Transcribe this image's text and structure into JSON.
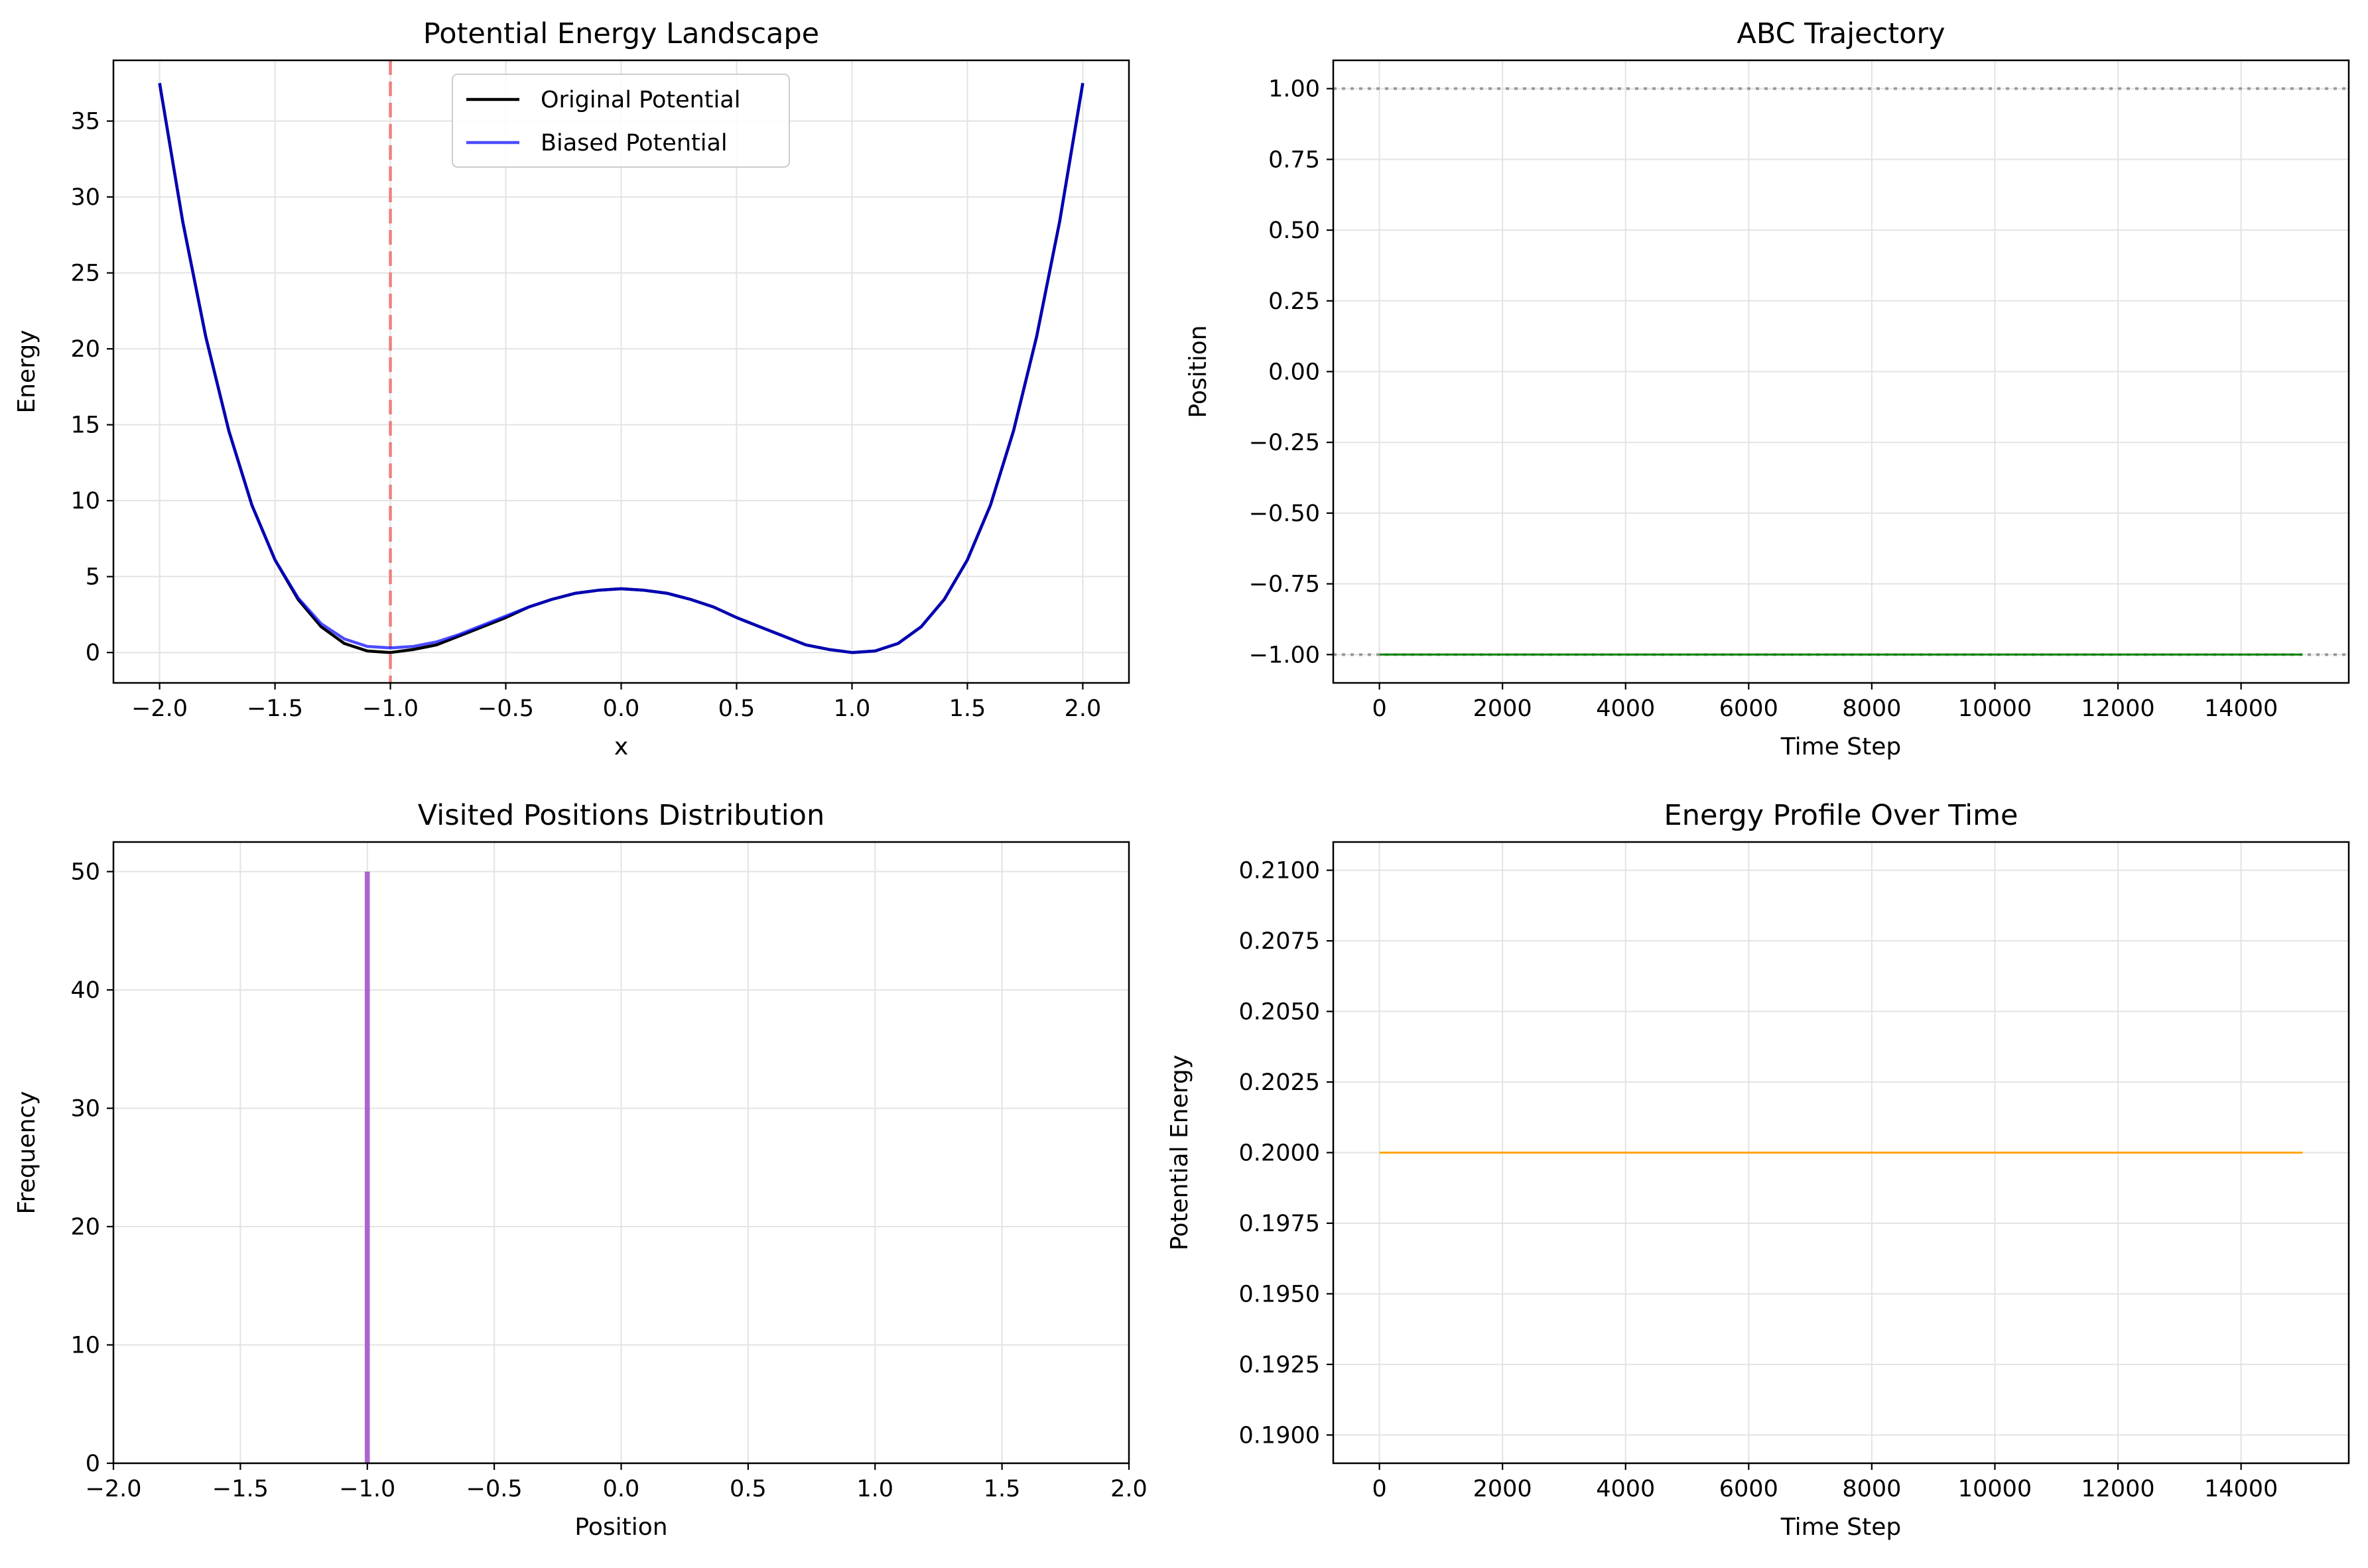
{
  "chart_data": [
    {
      "type": "line",
      "title": "Potential Energy Landscape",
      "xlabel": "x",
      "ylabel": "Energy",
      "xlim": [
        -2.2,
        2.2
      ],
      "ylim": [
        -2,
        39
      ],
      "xticks": [
        -2.0,
        -1.5,
        -1.0,
        -0.5,
        0.0,
        0.5,
        1.0,
        1.5,
        2.0
      ],
      "yticks": [
        0,
        5,
        10,
        15,
        20,
        25,
        30,
        35
      ],
      "xtick_labels": [
        "−2.0",
        "−1.5",
        "−1.0",
        "−0.5",
        "0.0",
        "0.5",
        "1.0",
        "1.5",
        "2.0"
      ],
      "ytick_labels": [
        "0",
        "5",
        "10",
        "15",
        "20",
        "25",
        "30",
        "35"
      ],
      "grid": true,
      "legend_position": "top-center",
      "series": [
        {
          "name": "Original Potential",
          "color": "#000000",
          "x": [
            -2.0,
            -1.9,
            -1.8,
            -1.7,
            -1.6,
            -1.5,
            -1.4,
            -1.3,
            -1.2,
            -1.1,
            -1.0,
            -0.9,
            -0.8,
            -0.7,
            -0.6,
            -0.5,
            -0.4,
            -0.3,
            -0.2,
            -0.1,
            0.0,
            0.1,
            0.2,
            0.3,
            0.4,
            0.5,
            0.6,
            0.7,
            0.8,
            0.9,
            1.0,
            1.1,
            1.2,
            1.3,
            1.4,
            1.5,
            1.6,
            1.7,
            1.8,
            1.9,
            2.0
          ],
          "y": [
            37.5,
            28.4,
            20.8,
            14.6,
            9.7,
            6.1,
            3.5,
            1.7,
            0.6,
            0.1,
            0.0,
            0.2,
            0.5,
            1.1,
            1.7,
            2.3,
            3.0,
            3.5,
            3.9,
            4.1,
            4.2,
            4.1,
            3.9,
            3.5,
            3.0,
            2.3,
            1.7,
            1.1,
            0.5,
            0.2,
            0.0,
            0.1,
            0.6,
            1.7,
            3.5,
            6.1,
            9.7,
            14.6,
            20.8,
            28.4,
            37.5
          ]
        },
        {
          "name": "Biased Potential",
          "color": "#0000ff",
          "x": [
            -2.0,
            -1.9,
            -1.8,
            -1.7,
            -1.6,
            -1.5,
            -1.4,
            -1.3,
            -1.2,
            -1.1,
            -1.0,
            -0.9,
            -0.8,
            -0.7,
            -0.6,
            -0.5,
            -0.4,
            -0.3,
            -0.2,
            -0.1,
            0.0,
            0.1,
            0.2,
            0.3,
            0.4,
            0.5,
            0.6,
            0.7,
            0.8,
            0.9,
            1.0,
            1.1,
            1.2,
            1.3,
            1.4,
            1.5,
            1.6,
            1.7,
            1.8,
            1.9,
            2.0
          ],
          "y": [
            37.5,
            28.4,
            20.8,
            14.6,
            9.7,
            6.1,
            3.6,
            1.9,
            0.9,
            0.4,
            0.3,
            0.4,
            0.7,
            1.2,
            1.8,
            2.4,
            3.0,
            3.5,
            3.9,
            4.1,
            4.2,
            4.1,
            3.9,
            3.5,
            3.0,
            2.3,
            1.7,
            1.1,
            0.5,
            0.2,
            0.0,
            0.1,
            0.6,
            1.7,
            3.5,
            6.1,
            9.7,
            14.6,
            20.8,
            28.4,
            37.5
          ]
        }
      ],
      "annotations": [
        {
          "type": "vline",
          "x": -1.0,
          "color": "#f08080",
          "style": "dashed"
        }
      ]
    },
    {
      "type": "line",
      "title": "ABC Trajectory",
      "xlabel": "Time Step",
      "ylabel": "Position",
      "xlim": [
        -750,
        15750
      ],
      "ylim": [
        -1.1,
        1.1
      ],
      "xticks": [
        0,
        2000,
        4000,
        6000,
        8000,
        10000,
        12000,
        14000
      ],
      "yticks": [
        -1.0,
        -0.75,
        -0.5,
        -0.25,
        0.0,
        0.25,
        0.5,
        0.75,
        1.0
      ],
      "xtick_labels": [
        "0",
        "2000",
        "4000",
        "6000",
        "8000",
        "10000",
        "12000",
        "14000"
      ],
      "ytick_labels": [
        "−1.00",
        "−0.75",
        "−0.50",
        "−0.25",
        "0.00",
        "0.25",
        "0.50",
        "0.75",
        "1.00"
      ],
      "grid": true,
      "series": [
        {
          "color": "#008000",
          "x": [
            0,
            15000
          ],
          "y": [
            -1.0,
            -1.0
          ]
        }
      ],
      "annotations": [
        {
          "type": "hline",
          "y": 1.0,
          "color": "#999999",
          "style": "dotted"
        },
        {
          "type": "hline",
          "y": -1.0,
          "color": "#999999",
          "style": "dotted"
        }
      ]
    },
    {
      "type": "bar",
      "title": "Visited Positions Distribution",
      "xlabel": "Position",
      "ylabel": "Frequency",
      "xlim": [
        -2.0,
        2.0
      ],
      "ylim": [
        0,
        52.5
      ],
      "xticks": [
        -2.0,
        -1.5,
        -1.0,
        -0.5,
        0.0,
        0.5,
        1.0,
        1.5,
        2.0
      ],
      "yticks": [
        0,
        10,
        20,
        30,
        40,
        50
      ],
      "xtick_labels": [
        "−2.0",
        "−1.5",
        "−1.0",
        "−0.5",
        "0.0",
        "0.5",
        "1.0",
        "1.5",
        "2.0"
      ],
      "ytick_labels": [
        "0",
        "10",
        "20",
        "30",
        "40",
        "50"
      ],
      "grid": true,
      "bars": [
        {
          "x0": -1.01,
          "x1": -0.99,
          "value": 50,
          "color": "#9b4dca"
        }
      ]
    },
    {
      "type": "line",
      "title": "Energy Profile Over Time",
      "xlabel": "Time Step",
      "ylabel": "Potential Energy",
      "xlim": [
        -750,
        15750
      ],
      "ylim": [
        0.189,
        0.211
      ],
      "xticks": [
        0,
        2000,
        4000,
        6000,
        8000,
        10000,
        12000,
        14000
      ],
      "yticks": [
        0.19,
        0.1925,
        0.195,
        0.1975,
        0.2,
        0.2025,
        0.205,
        0.2075,
        0.21
      ],
      "xtick_labels": [
        "0",
        "2000",
        "4000",
        "6000",
        "8000",
        "10000",
        "12000",
        "14000"
      ],
      "ytick_labels": [
        "0.1900",
        "0.1925",
        "0.1950",
        "0.1975",
        "0.2000",
        "0.2025",
        "0.2050",
        "0.2075",
        "0.2100"
      ],
      "grid": true,
      "series": [
        {
          "color": "#ffa500",
          "x": [
            0,
            15000
          ],
          "y": [
            0.2,
            0.2
          ]
        }
      ]
    }
  ]
}
